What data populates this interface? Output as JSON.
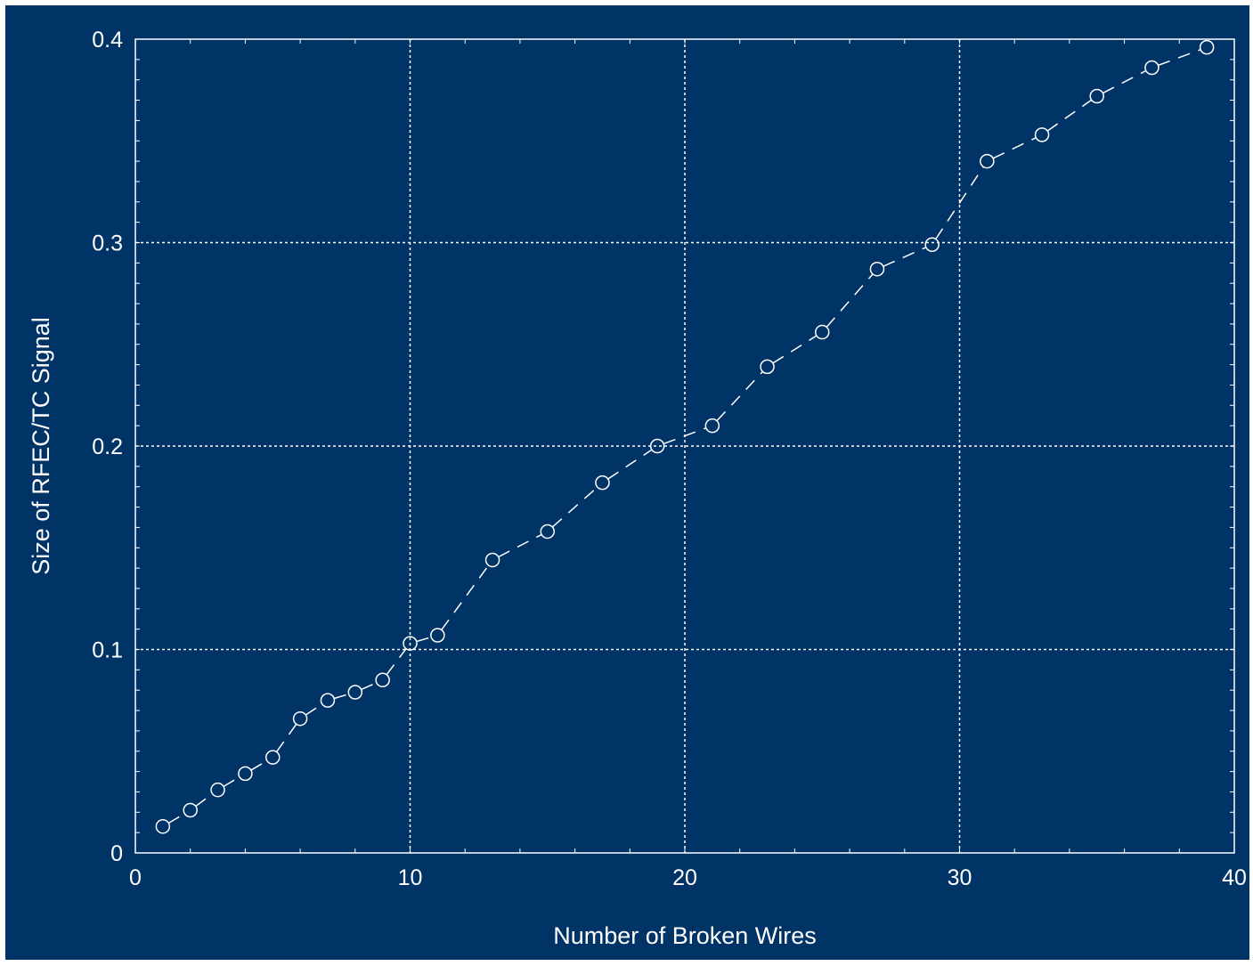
{
  "colors": {
    "background": "#003366",
    "border": "#ffffff",
    "foreground": "#ffffff",
    "grid": "#ffffff"
  },
  "chart_data": {
    "type": "line",
    "title": "",
    "xlabel": "Number of Broken Wires",
    "ylabel": "Size of RFEC/TC Signal",
    "xlim": [
      0,
      40
    ],
    "ylim": [
      0,
      0.4
    ],
    "x_ticks": [
      0,
      10,
      20,
      30,
      40
    ],
    "x_tick_labels": [
      "0",
      "10",
      "20",
      "30",
      "40"
    ],
    "y_ticks": [
      0,
      0.1,
      0.2,
      0.3,
      0.4
    ],
    "y_tick_labels": [
      "0",
      "0.1",
      "0.2",
      "0.3",
      "0.4"
    ],
    "grid": true,
    "grid_style": "dotted",
    "marker": "open-circle",
    "line_style": "dashed",
    "series": [
      {
        "x": [
          1,
          2,
          3,
          4,
          5,
          6,
          7,
          8,
          9,
          10,
          11,
          13,
          15,
          17,
          19,
          21,
          23,
          25,
          27,
          29,
          31,
          33,
          35,
          37,
          39
        ],
        "y": [
          0.013,
          0.021,
          0.031,
          0.039,
          0.047,
          0.066,
          0.075,
          0.079,
          0.085,
          0.103,
          0.107,
          0.144,
          0.158,
          0.182,
          0.2,
          0.21,
          0.239,
          0.256,
          0.287,
          0.299,
          0.34,
          0.353,
          0.372,
          0.386,
          0.396
        ]
      }
    ]
  }
}
